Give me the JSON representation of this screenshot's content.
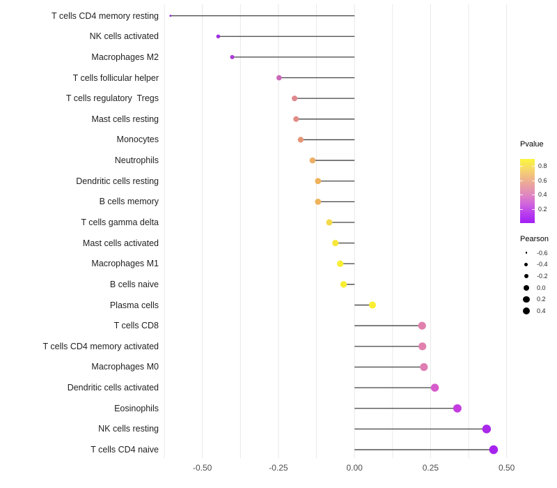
{
  "chart_data": {
    "type": "lollipop",
    "orientation": "horizontal",
    "title": "",
    "xlabel": "",
    "ylabel": "",
    "x_axis": {
      "tick_values": [
        -0.5,
        -0.25,
        0.0,
        0.25,
        0.5
      ],
      "tick_labels": [
        "-0.50",
        "-0.25",
        "0.00",
        "0.25",
        "0.50"
      ],
      "lim": [
        -0.655,
        0.51
      ],
      "minor_grid_step": 0.125,
      "grid_color": "#e8e8e8"
    },
    "encoding": {
      "color": "Pvalue",
      "size": "Pearson",
      "stem_color": "#424242"
    },
    "points": [
      {
        "label": "T cells CD4 memory resting",
        "pearson": -0.605,
        "color": "#8a1ed6"
      },
      {
        "label": "NK cells activated",
        "pearson": -0.448,
        "color": "#9c2ce0"
      },
      {
        "label": "Macrophages M2",
        "pearson": -0.402,
        "color": "#ac3ad9"
      },
      {
        "label": "T cells follicular helper",
        "pearson": -0.248,
        "color": "#cb68b8"
      },
      {
        "label": "T cells regulatory  Tregs",
        "pearson": -0.197,
        "color": "#e0898e"
      },
      {
        "label": "Mast cells resting",
        "pearson": -0.192,
        "color": "#e18c85"
      },
      {
        "label": "Monocytes",
        "pearson": -0.177,
        "color": "#e49575"
      },
      {
        "label": "Neutrophils",
        "pearson": -0.138,
        "color": "#ecae66"
      },
      {
        "label": "Dendritic cells resting",
        "pearson": -0.12,
        "color": "#eeb25b"
      },
      {
        "label": "B cells memory",
        "pearson": -0.12,
        "color": "#eeb25b"
      },
      {
        "label": "T cells gamma delta",
        "pearson": -0.083,
        "color": "#f3da4b"
      },
      {
        "label": "Mast cells activated",
        "pearson": -0.063,
        "color": "#f7e73c"
      },
      {
        "label": "Macrophages M1",
        "pearson": -0.047,
        "color": "#f9ee33"
      },
      {
        "label": "B cells naive",
        "pearson": -0.036,
        "color": "#f9ef31"
      },
      {
        "label": "Plasma cells",
        "pearson": 0.059,
        "color": "#f9ee33"
      },
      {
        "label": "T cells CD8",
        "pearson": 0.222,
        "color": "#e080ac"
      },
      {
        "label": "T cells CD4 memory activated",
        "pearson": 0.223,
        "color": "#e080ae"
      },
      {
        "label": "Macrophages M0",
        "pearson": 0.228,
        "color": "#df7db3"
      },
      {
        "label": "Dendritic cells activated",
        "pearson": 0.264,
        "color": "#d65bcb"
      },
      {
        "label": "Eosinophils",
        "pearson": 0.338,
        "color": "#c43be0"
      },
      {
        "label": "NK cells resting",
        "pearson": 0.434,
        "color": "#a928e9"
      },
      {
        "label": "T cells CD4 naive",
        "pearson": 0.457,
        "color": "#a523ec"
      }
    ],
    "legends": {
      "pvalue": {
        "title": "Pvalue",
        "tick_labels": [
          "0.8",
          "0.6",
          "0.4",
          "0.2"
        ],
        "tick_values": [
          0.8,
          0.6,
          0.4,
          0.2
        ],
        "bar_value_top": 0.9,
        "bar_value_bottom": 0.0,
        "gradient_stops": [
          {
            "pos": 0.0,
            "color": "#fbf63b"
          },
          {
            "pos": 0.14,
            "color": "#f7dc66"
          },
          {
            "pos": 0.3,
            "color": "#f0b888"
          },
          {
            "pos": 0.45,
            "color": "#e79aa9"
          },
          {
            "pos": 0.58,
            "color": "#de82c5"
          },
          {
            "pos": 0.71,
            "color": "#cf63dd"
          },
          {
            "pos": 0.85,
            "color": "#b93eee"
          },
          {
            "pos": 1.0,
            "color": "#a21ff4"
          }
        ]
      },
      "pearson": {
        "title": "Pearson",
        "entries": [
          {
            "label": "-0.6",
            "value": -0.6
          },
          {
            "label": "-0.4",
            "value": -0.4
          },
          {
            "label": "-0.2",
            "value": -0.2
          },
          {
            "label": "0.0",
            "value": 0.0
          },
          {
            "label": "0.2",
            "value": 0.2
          },
          {
            "label": "0.4",
            "value": 0.4
          }
        ]
      }
    }
  }
}
